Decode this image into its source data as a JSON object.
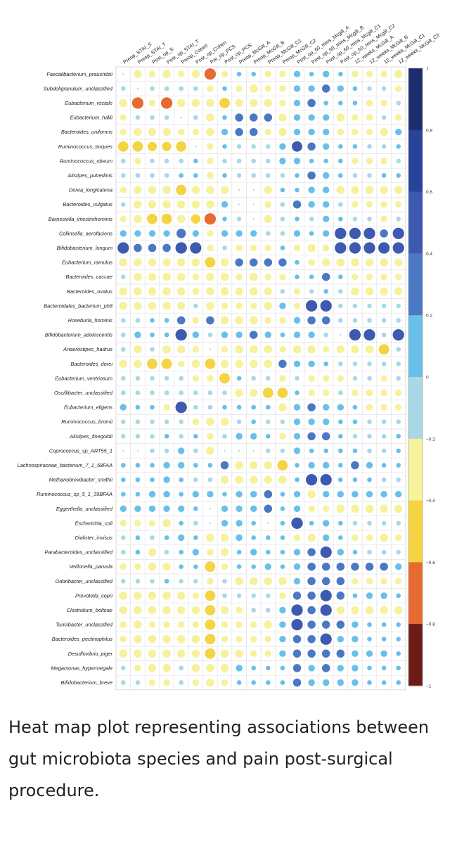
{
  "caption": "Heat map plot representing associations between gut microbiota species and pain post-surgical procedure.",
  "chart_data": {
    "type": "heatmap",
    "title": "",
    "columns": [
      "Preop_STAI_S",
      "Preop_STAI_T",
      "Post_op_S",
      "Post_op_STAI_T",
      "Preop_Cohen",
      "Post_op_Cohen",
      "Pre_op_PCS",
      "Post_op_PCS",
      "Preop_McGill_A",
      "Preop_McGill_B",
      "Preop_McGill_C1",
      "Preop_McGill_C2",
      "Post_op_60_mins_Mcgill_A",
      "Post_op_60_mins_Mcgill_B",
      "Post_op_60_mins_Mcgill_C1",
      "Post_op_60_mins_Mcgill_C2",
      "12_weeks_McGill_A",
      "12_weeks_McGill_B",
      "12_weeks_McGill_C1",
      "12_weeks_McGill_C2"
    ],
    "rows": [
      "Faecalibacterium_prausnitzii",
      "Subdoligranulum_unclassified",
      "Eubacterium_rectale",
      "Eubacterium_hallii",
      "Bacteroides_uniformis",
      "Ruminococcus_torques",
      "Ruminococcus_obeum",
      "Alistipes_putredinis",
      "Dorea_longicatena",
      "Bacteroides_vulgatus",
      "Barnesiella_intestinihominis",
      "Collinsella_aerofaciens",
      "Bifidobacterium_longum",
      "Eubacterium_ramulus",
      "Bacteroides_caccae",
      "Bacteroides_ovatus",
      "Bacteroidales_bacterium_ph8",
      "Roseburia_hominis",
      "Bifidobacterium_adolescentis",
      "Anaerostipes_hadrus",
      "Bacteroides_dorei",
      "Eubacterium_ventriosum",
      "Oscillibacter_unclassified",
      "Eubacterium_eligens",
      "Ruminococcus_bromii",
      "Alistipes_finegoldii",
      "Coprococcus_sp_ART55_1",
      "Lachnospiraceae_bacterium_7_1_58FAA",
      "Methanobrevibacter_smithii",
      "Ruminococcus_sp_5_1_39BFAA",
      "Eggerthella_unclassified",
      "Escherichia_coli",
      "Dialister_invisus",
      "Parabacteroides_unclassified",
      "Veillonella_parvula",
      "Odoribacter_unclassified",
      "Prevotella_copri",
      "Clostridium_bolteae",
      "Turicibacter_unclassified",
      "Bacteroides_pectinophilus",
      "Desulfovibrio_piger",
      "Megamonas_hypermegale",
      "Bifidobacterium_breve"
    ],
    "values": [
      [
        0,
        -0.3,
        -0.2,
        -0.3,
        -0.2,
        -0.3,
        -0.6,
        -0.2,
        0.1,
        0.1,
        -0.2,
        -0.2,
        0.2,
        0.1,
        0.2,
        0.1,
        -0.2,
        -0.2,
        -0.2,
        -0.3
      ],
      [
        -0.1,
        0,
        -0.1,
        -0.1,
        -0.1,
        -0.1,
        -0.2,
        0.1,
        -0.2,
        -0.3,
        -0.2,
        -0.2,
        0.2,
        0.2,
        0.3,
        0.2,
        0.1,
        -0.1,
        -0.1,
        -0.2
      ],
      [
        -0.3,
        -0.6,
        -0.2,
        -0.6,
        -0.3,
        -0.3,
        -0.3,
        -0.5,
        -0.3,
        -0.3,
        -0.3,
        -0.2,
        0.2,
        0.3,
        0.1,
        0.1,
        0.1,
        -0.2,
        -0.2,
        -0.1
      ],
      [
        -0.2,
        -0.1,
        -0.1,
        -0.1,
        0,
        -0.1,
        -0.3,
        0.1,
        0.3,
        0.3,
        0.3,
        -0.3,
        0.2,
        0.2,
        0.2,
        -0.3,
        -0.2,
        -0.2,
        -0.1,
        -0.2
      ],
      [
        -0.2,
        -0.3,
        -0.3,
        -0.3,
        -0.2,
        -0.2,
        -0.3,
        0.2,
        0.3,
        0.3,
        -0.2,
        -0.3,
        0.2,
        0.2,
        0.2,
        -0.2,
        -0.2,
        -0.2,
        -0.3,
        0.2
      ],
      [
        -0.5,
        -0.5,
        -0.4,
        -0.4,
        -0.5,
        0,
        -0.2,
        0.1,
        -0.1,
        -0.1,
        -0.1,
        0.2,
        0.5,
        0.3,
        0.2,
        0.1,
        0.1,
        -0.1,
        -0.1,
        0.1
      ],
      [
        -0.1,
        -0.2,
        -0.1,
        -0.1,
        -0.1,
        0.1,
        -0.2,
        -0.1,
        -0.1,
        -0.1,
        -0.1,
        0.2,
        0.2,
        0.1,
        0.1,
        0.1,
        -0.2,
        -0.2,
        -0.2,
        -0.1
      ],
      [
        -0.1,
        -0.1,
        -0.1,
        -0.1,
        0.1,
        0.1,
        -0.2,
        0.1,
        -0.1,
        -0.1,
        -0.1,
        -0.1,
        0.1,
        0.3,
        0.2,
        0.1,
        -0.1,
        -0.1,
        0.1,
        0.1
      ],
      [
        -0.2,
        -0.3,
        -0.3,
        -0.3,
        -0.5,
        -0.3,
        -0.3,
        -0.3,
        0,
        0,
        -0.3,
        0.1,
        0.1,
        0.2,
        0.2,
        -0.3,
        -0.3,
        -0.3,
        -0.3,
        -0.3
      ],
      [
        -0.1,
        -0.3,
        -0.3,
        -0.3,
        -0.3,
        -0.3,
        -0.3,
        0.2,
        0,
        0,
        -0.2,
        -0.1,
        0.3,
        0.2,
        0.2,
        -0.1,
        -0.2,
        -0.2,
        -0.2,
        -0.2
      ],
      [
        -0.2,
        -0.3,
        -0.5,
        -0.5,
        -0.3,
        -0.4,
        -0.6,
        0.1,
        -0.1,
        0,
        -0.3,
        -0.1,
        0.1,
        -0.1,
        0.2,
        0.1,
        -0.1,
        -0.1,
        -0.2,
        -0.1
      ],
      [
        0.2,
        0.2,
        0.2,
        0.2,
        0.4,
        0.2,
        -0.2,
        0.2,
        0.2,
        0.2,
        -0.1,
        -0.1,
        0.2,
        0.1,
        0.2,
        0.6,
        0.6,
        0.6,
        0.3,
        0.6
      ],
      [
        0.6,
        0.3,
        0.3,
        0.3,
        0.6,
        0.6,
        -0.2,
        -0.1,
        -0.2,
        -0.2,
        -0.2,
        0.1,
        -0.2,
        -0.3,
        -0.2,
        0.6,
        0.6,
        0.6,
        0.6,
        0.6
      ],
      [
        -0.3,
        -0.3,
        -0.3,
        -0.3,
        -0.3,
        -0.3,
        -0.5,
        -0.3,
        0.3,
        0.3,
        0.3,
        0.3,
        0.1,
        -0.2,
        -0.3,
        -0.3,
        -0.3,
        -0.3,
        -0.3,
        -0.3
      ],
      [
        -0.1,
        -0.3,
        -0.3,
        -0.3,
        -0.3,
        -0.2,
        -0.3,
        -0.3,
        -0.2,
        -0.3,
        -0.2,
        -0.2,
        0.1,
        0.1,
        0.3,
        0.1,
        -0.2,
        -0.2,
        -0.2,
        -0.2
      ],
      [
        -0.3,
        -0.3,
        -0.3,
        -0.3,
        -0.3,
        -0.2,
        -0.3,
        -0.3,
        -0.3,
        -0.3,
        -0.3,
        -0.1,
        -0.2,
        -0.1,
        0.1,
        -0.1,
        -0.3,
        -0.3,
        -0.3,
        -0.3
      ],
      [
        -0.3,
        -0.3,
        -0.3,
        -0.3,
        -0.3,
        -0.1,
        -0.3,
        -0.2,
        -0.2,
        -0.2,
        -0.3,
        0.2,
        -0.2,
        0.6,
        0.6,
        -0.1,
        -0.1,
        -0.1,
        -0.1,
        -0.1
      ],
      [
        -0.1,
        -0.1,
        0.1,
        0.1,
        0.3,
        -0.2,
        0.3,
        -0.3,
        -0.3,
        -0.3,
        -0.2,
        -0.2,
        0.2,
        0.3,
        0.3,
        -0.1,
        -0.1,
        -0.1,
        -0.1,
        -0.1
      ],
      [
        -0.1,
        0.2,
        0.1,
        0.1,
        0.6,
        0.2,
        -0.1,
        0.2,
        0.2,
        0.3,
        0.2,
        0.1,
        0.2,
        0.2,
        -0.1,
        0,
        0.6,
        0.6,
        -0.1,
        0.6
      ],
      [
        -0.1,
        -0.3,
        -0.1,
        -0.3,
        -0.3,
        -0.2,
        0,
        -0.2,
        -0.3,
        -0.3,
        -0.3,
        -0.2,
        -0.3,
        -0.3,
        -0.2,
        -0.3,
        -0.3,
        -0.3,
        -0.5,
        -0.1
      ],
      [
        -0.3,
        -0.3,
        -0.5,
        -0.5,
        -0.2,
        -0.3,
        -0.5,
        -0.3,
        -0.3,
        -0.3,
        -0.3,
        0.3,
        0.2,
        0.2,
        0.1,
        -0.1,
        -0.1,
        -0.1,
        -0.1,
        -0.1
      ],
      [
        -0.1,
        -0.1,
        -0.1,
        -0.1,
        -0.1,
        -0.2,
        -0.2,
        -0.5,
        0.1,
        -0.1,
        -0.1,
        -0.2,
        -0.1,
        -0.2,
        -0.2,
        -0.2,
        -0.1,
        -0.1,
        -0.2,
        -0.1
      ],
      [
        -0.1,
        -0.1,
        -0.1,
        -0.1,
        -0.1,
        -0.1,
        -0.1,
        -0.1,
        -0.3,
        -0.3,
        -0.5,
        -0.5,
        0.1,
        -0.2,
        -0.2,
        -0.1,
        -0.2,
        -0.2,
        -0.2,
        -0.2
      ],
      [
        0.2,
        0.1,
        0.1,
        -0.2,
        0.6,
        -0.1,
        -0.1,
        0.1,
        0.1,
        0.1,
        0.1,
        -0.3,
        0.2,
        0.3,
        0.2,
        0.2,
        0.1,
        -0.2,
        -0.2,
        -0.2
      ],
      [
        -0.1,
        -0.1,
        -0.1,
        -0.1,
        -0.1,
        -0.2,
        -0.3,
        -0.3,
        -0.1,
        0.1,
        -0.1,
        -0.1,
        0.2,
        0.2,
        0.2,
        0.1,
        0.1,
        -0.1,
        -0.1,
        -0.1
      ],
      [
        -0.1,
        -0.1,
        -0.1,
        0.1,
        -0.1,
        0.1,
        -0.2,
        -0.1,
        0.2,
        0.2,
        0.1,
        -0.2,
        0.2,
        0.3,
        0.3,
        0.1,
        -0.1,
        -0.1,
        -0.1,
        0.1
      ],
      [
        0,
        0,
        -0.1,
        -0.1,
        0.2,
        -0.1,
        -0.3,
        0,
        0,
        0,
        -0.1,
        -0.1,
        0.2,
        0.1,
        0.1,
        0.1,
        0.1,
        -0.1,
        -0.1,
        0.1
      ],
      [
        0.1,
        0.1,
        0.1,
        0.2,
        0.2,
        0.1,
        0.1,
        0.3,
        -0.3,
        -0.3,
        -0.3,
        -0.5,
        0.1,
        0.2,
        0.2,
        0.1,
        0.3,
        0.2,
        0.1,
        0.1
      ],
      [
        0.1,
        0.1,
        0.1,
        0.2,
        0.1,
        -0.1,
        -0.1,
        -0.3,
        -0.3,
        -0.3,
        -0.3,
        -0.3,
        0.1,
        0.6,
        0.6,
        0.1,
        0.1,
        0.1,
        -0.1,
        -0.1
      ],
      [
        0.1,
        0.1,
        0.2,
        0.2,
        0.1,
        0.2,
        0.2,
        0.1,
        0.2,
        0.2,
        0.3,
        0.1,
        0.2,
        -0.3,
        0.2,
        0.2,
        0.2,
        0.2,
        0.2,
        0.2
      ],
      [
        0.2,
        0.2,
        0.2,
        0.2,
        0.2,
        0.1,
        0,
        0.2,
        0.2,
        0.2,
        0.3,
        0.1,
        0.2,
        -0.2,
        -0.2,
        -0.3,
        -0.3,
        -0.3,
        -0.3,
        -0.3
      ],
      [
        -0.2,
        -0.2,
        -0.2,
        -0.3,
        0.1,
        -0.1,
        0,
        0.2,
        0.2,
        0.1,
        0,
        0.1,
        0.6,
        0.1,
        0.2,
        0.1,
        -0.1,
        -0.1,
        -0.1,
        -0.1
      ],
      [
        -0.1,
        0.1,
        -0.1,
        0.1,
        0.2,
        0.1,
        -0.3,
        -0.3,
        0.2,
        0.1,
        0.1,
        0.1,
        -0.2,
        -0.3,
        0.2,
        0.1,
        -0.2,
        -0.2,
        -0.3,
        -0.2
      ],
      [
        -0.1,
        0.1,
        -0.3,
        -0.1,
        0.1,
        0.2,
        -0.2,
        -0.3,
        0.1,
        0.2,
        0.1,
        0.1,
        0.2,
        0.3,
        0.6,
        0.2,
        0.1,
        -0.1,
        -0.1,
        -0.1
      ],
      [
        -0.2,
        -0.2,
        -0.3,
        -0.3,
        0.1,
        0.1,
        -0.5,
        -0.2,
        0.1,
        0.1,
        0.2,
        0.1,
        0.2,
        0.3,
        0.3,
        0.3,
        0.3,
        0.3,
        0.3,
        0.2
      ],
      [
        -0.1,
        -0.1,
        -0.1,
        0.1,
        -0.1,
        -0.1,
        -0.2,
        -0.1,
        -0.3,
        -0.3,
        -0.3,
        -0.3,
        0.2,
        0.3,
        0.3,
        0.3,
        -0.2,
        -0.2,
        -0.2,
        -0.2
      ],
      [
        -0.3,
        -0.3,
        -0.3,
        -0.3,
        -0.3,
        -0.2,
        -0.5,
        -0.1,
        -0.1,
        -0.1,
        -0.1,
        -0.2,
        0.3,
        0.3,
        0.6,
        0.3,
        0.1,
        0.2,
        0.2,
        0.1
      ],
      [
        -0.3,
        -0.3,
        -0.3,
        -0.3,
        -0.3,
        -0.3,
        -0.5,
        -0.3,
        -0.2,
        -0.1,
        -0.1,
        0.2,
        0.6,
        0.3,
        0.6,
        -0.3,
        -0.3,
        -0.3,
        -0.3,
        -0.3
      ],
      [
        -0.2,
        -0.3,
        -0.2,
        -0.2,
        -0.2,
        -0.2,
        -0.5,
        -0.2,
        -0.2,
        -0.2,
        -0.3,
        0.2,
        0.6,
        0.3,
        0.3,
        0.3,
        0.2,
        0.1,
        0.1,
        0.1
      ],
      [
        -0.2,
        -0.3,
        -0.3,
        -0.3,
        -0.3,
        -0.3,
        -0.5,
        -0.2,
        -0.2,
        -0.2,
        -0.2,
        0.2,
        0.3,
        0.3,
        0.6,
        0.2,
        0.2,
        0.1,
        0.1,
        0.1
      ],
      [
        -0.3,
        -0.3,
        -0.3,
        -0.3,
        -0.3,
        -0.3,
        -0.5,
        -0.3,
        -0.3,
        -0.2,
        -0.2,
        0.2,
        0.3,
        0.3,
        0.3,
        0.3,
        0.2,
        0.2,
        0.2,
        0.1
      ],
      [
        -0.1,
        -0.2,
        -0.3,
        -0.3,
        -0.1,
        -0.3,
        -0.3,
        -0.3,
        0.2,
        0.1,
        0.1,
        0.1,
        0.3,
        0.2,
        0.3,
        0.2,
        0.2,
        0.1,
        0.1,
        0.1
      ],
      [
        -0.1,
        -0.1,
        -0.2,
        -0.2,
        -0.1,
        -0.2,
        -0.3,
        -0.2,
        0.1,
        0.1,
        0.1,
        0.1,
        0.3,
        0.2,
        0.2,
        0.2,
        0.2,
        0.1,
        0.1,
        0.1
      ]
    ],
    "colorbar": {
      "range": [
        -1,
        1
      ],
      "ticks": [
        "1",
        "0.8",
        "0.6",
        "0.4",
        "0.2",
        "0",
        "−0.2",
        "−0.4",
        "−0.6",
        "−0.8",
        "−1"
      ],
      "tick_values": [
        1,
        0.8,
        0.6,
        0.4,
        0.2,
        0,
        -0.2,
        -0.4,
        -0.6,
        -0.8,
        -1
      ],
      "colors_top_to_bottom": [
        "#1e2d6b",
        "#27439a",
        "#3d5ab0",
        "#4a78c2",
        "#68c0ea",
        "#a9d8e6",
        "#f6f19b",
        "#f4d443",
        "#e86a33",
        "#d93a2b",
        "#6e1b17"
      ]
    },
    "legend": "right"
  }
}
